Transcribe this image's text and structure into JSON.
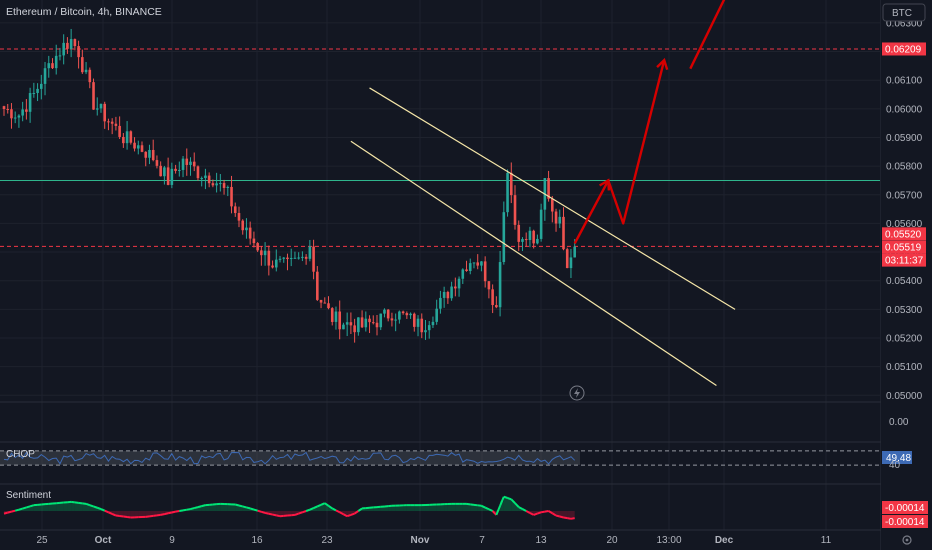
{
  "header": {
    "symbol_title": "Ethereum / Bitcoin, 4h, BINANCE",
    "currency_button": "BTC"
  },
  "colors": {
    "background": "#131722",
    "up": "#26a69a",
    "down": "#ef5350",
    "channel": "#f5e6a8",
    "arrow": "#d50000",
    "hline_red": "#f23645",
    "hline_green": "#2fb58c",
    "chop": "#3d6ab5",
    "sentiment_up": "#00e676",
    "sentiment_down": "#ff1744"
  },
  "price_axis": {
    "ticks": [
      "0.06300",
      "0.06200",
      "0.06100",
      "0.06000",
      "0.05900",
      "0.05800",
      "0.05700",
      "0.05600",
      "0.05500",
      "0.05400",
      "0.05300",
      "0.05200",
      "0.05100",
      "0.05000"
    ],
    "tick_values": [
      0.063,
      0.062,
      0.061,
      0.06,
      0.059,
      0.058,
      0.057,
      0.056,
      0.055,
      0.054,
      0.053,
      0.052,
      0.051,
      0.05
    ],
    "badges": [
      {
        "label": "0.06209",
        "value": 0.06209,
        "color": "#f23645",
        "kind": "hline"
      },
      {
        "label": "0.05520",
        "value": 0.0552,
        "color": "#f23645",
        "kind": "hline"
      },
      {
        "label": "0.05519",
        "value": 0.05519,
        "color": "#f23645",
        "kind": "last"
      },
      {
        "label": "03:11:37",
        "value": 0.05519,
        "color": "#f23645",
        "kind": "countdown"
      }
    ]
  },
  "time_axis": {
    "labels": [
      "25",
      "Oct",
      "9",
      "16",
      "23",
      "Nov",
      "7",
      "13",
      "20",
      "13:00",
      "Dec",
      "11"
    ],
    "bold": [
      "Oct",
      "Nov",
      "Dec"
    ]
  },
  "chart_data": {
    "type": "candlestick",
    "title": "Ethereum / Bitcoin, 4h, BINANCE",
    "timeframe": "4h",
    "exchange": "BINANCE",
    "y_scale": "linear",
    "ylim": [
      0.0498,
      0.0638
    ],
    "last_price": 0.05519,
    "horizontal_lines": [
      {
        "value": 0.06209,
        "style": "dashed",
        "color": "#f23645"
      },
      {
        "value": 0.0575,
        "style": "solid",
        "color": "#2fb58c"
      },
      {
        "value": 0.0552,
        "style": "dashed",
        "color": "#f23645"
      }
    ],
    "price_path_anchors": [
      [
        0,
        0.06
      ],
      [
        4,
        0.0598
      ],
      [
        8,
        0.0605
      ],
      [
        12,
        0.0615
      ],
      [
        16,
        0.0622
      ],
      [
        18,
        0.0624
      ],
      [
        20,
        0.062
      ],
      [
        24,
        0.0602
      ],
      [
        28,
        0.0596
      ],
      [
        32,
        0.059
      ],
      [
        36,
        0.0587
      ],
      [
        40,
        0.0583
      ],
      [
        44,
        0.0575
      ],
      [
        48,
        0.0582
      ],
      [
        52,
        0.0578
      ],
      [
        56,
        0.0576
      ],
      [
        60,
        0.057
      ],
      [
        64,
        0.0558
      ],
      [
        68,
        0.0552
      ],
      [
        72,
        0.0546
      ],
      [
        76,
        0.0545
      ],
      [
        80,
        0.0548
      ],
      [
        82,
        0.0553
      ],
      [
        84,
        0.0535
      ],
      [
        88,
        0.0527
      ],
      [
        92,
        0.0525
      ],
      [
        96,
        0.0524
      ],
      [
        100,
        0.0526
      ],
      [
        104,
        0.0529
      ],
      [
        108,
        0.0527
      ],
      [
        112,
        0.0524
      ],
      [
        116,
        0.053
      ],
      [
        120,
        0.0538
      ],
      [
        124,
        0.0546
      ],
      [
        126,
        0.0548
      ],
      [
        128,
        0.0545
      ],
      [
        130,
        0.0539
      ],
      [
        132,
        0.053
      ],
      [
        133,
        0.0549
      ],
      [
        135,
        0.058
      ],
      [
        137,
        0.056
      ],
      [
        139,
        0.0553
      ],
      [
        141,
        0.0556
      ],
      [
        143,
        0.0552
      ],
      [
        145,
        0.0575
      ],
      [
        147,
        0.0565
      ],
      [
        149,
        0.056
      ],
      [
        151,
        0.0547
      ],
      [
        153,
        0.0553
      ]
    ],
    "num_candles": 154,
    "channel_lines": [
      {
        "from": {
          "candle": 98,
          "price": 0.06073
        },
        "to": {
          "candle": 196,
          "price": 0.053
        }
      },
      {
        "from": {
          "candle": 93,
          "price": 0.05887
        },
        "to": {
          "candle": 191,
          "price": 0.05034
        }
      }
    ],
    "projection_arrows": [
      {
        "path": [
          [
            153,
            0.0553
          ],
          [
            162,
            0.0575
          ],
          [
            166,
            0.056
          ],
          [
            177,
            0.0617
          ]
        ]
      },
      {
        "path": [
          [
            184,
            0.0614
          ],
          [
            202,
            0.0662
          ]
        ]
      }
    ],
    "indicators": [
      {
        "name": "CHOP",
        "value": "49.48",
        "upper_band": 61.8,
        "lower_band": 38.2,
        "range": [
          30,
          70
        ]
      },
      {
        "name": "Sentiment",
        "values": [
          "-0.00014",
          "-0.00014"
        ]
      }
    ],
    "sentiment_anchors": [
      [
        0,
        -0.2
      ],
      [
        4,
        0.1
      ],
      [
        8,
        0.45
      ],
      [
        14,
        0.6
      ],
      [
        18,
        0.7
      ],
      [
        22,
        0.55
      ],
      [
        26,
        0.15
      ],
      [
        30,
        -0.35
      ],
      [
        34,
        -0.5
      ],
      [
        38,
        -0.45
      ],
      [
        42,
        -0.3
      ],
      [
        46,
        -0.05
      ],
      [
        50,
        0.15
      ],
      [
        54,
        0.45
      ],
      [
        58,
        0.55
      ],
      [
        62,
        0.5
      ],
      [
        66,
        0.2
      ],
      [
        70,
        -0.15
      ],
      [
        74,
        -0.4
      ],
      [
        78,
        -0.3
      ],
      [
        82,
        0.1
      ],
      [
        86,
        0.6
      ],
      [
        88,
        0.2
      ],
      [
        90,
        -0.1
      ],
      [
        92,
        -0.4
      ],
      [
        94,
        -0.2
      ],
      [
        96,
        0.2
      ],
      [
        100,
        0.3
      ],
      [
        104,
        0.4
      ],
      [
        108,
        0.45
      ],
      [
        112,
        0.45
      ],
      [
        116,
        0.5
      ],
      [
        120,
        0.55
      ],
      [
        124,
        0.55
      ],
      [
        128,
        0.4
      ],
      [
        131,
        0.0
      ],
      [
        132,
        -0.3
      ],
      [
        134,
        1.1
      ],
      [
        136,
        0.9
      ],
      [
        138,
        0.3
      ],
      [
        140,
        0.0
      ],
      [
        142,
        -0.3
      ],
      [
        144,
        -0.1
      ],
      [
        146,
        0.0
      ],
      [
        148,
        -0.35
      ],
      [
        150,
        -0.5
      ],
      [
        152,
        -0.6
      ],
      [
        153,
        -0.55
      ]
    ]
  }
}
